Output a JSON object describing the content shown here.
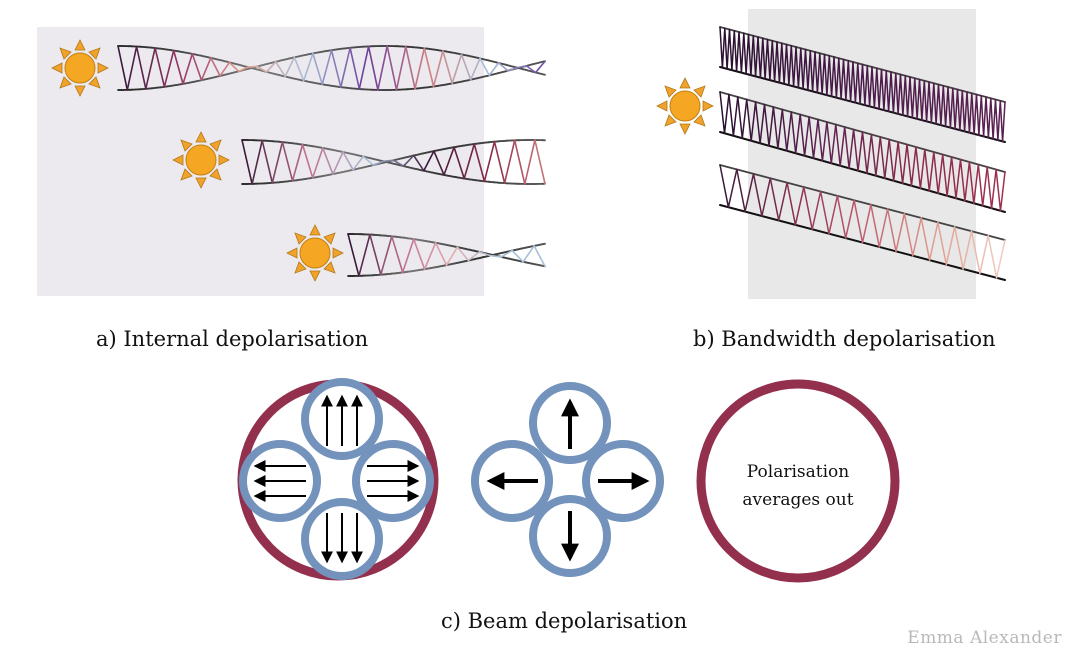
{
  "colors": {
    "panel_a_background": "#eceaee",
    "panel_b_background": "#e8e8e8",
    "sun_fill": "#f5a623",
    "sun_ray": "#f0a22a",
    "beam_blue": "#7393bd",
    "beam_red": "#93304e",
    "wave_dark": "#3a1a3a",
    "wave_purple": "#6a3a8a",
    "wave_pink": "#c06070",
    "wave_peach": "#e0a090",
    "wave_light_blue": "#a8c0d8"
  },
  "icons": [
    "sun-icon",
    "arrow-up-icon",
    "arrow-down-icon",
    "arrow-left-icon",
    "arrow-right-icon"
  ],
  "captions": {
    "a": "a) Internal depolarisation",
    "b": "b) Bandwidth depolarisation",
    "c": "c) Beam depolarisation"
  },
  "panel_c": {
    "label_line1": "Polarisation",
    "label_line2": "averages out"
  },
  "credit": "Emma Alexander"
}
